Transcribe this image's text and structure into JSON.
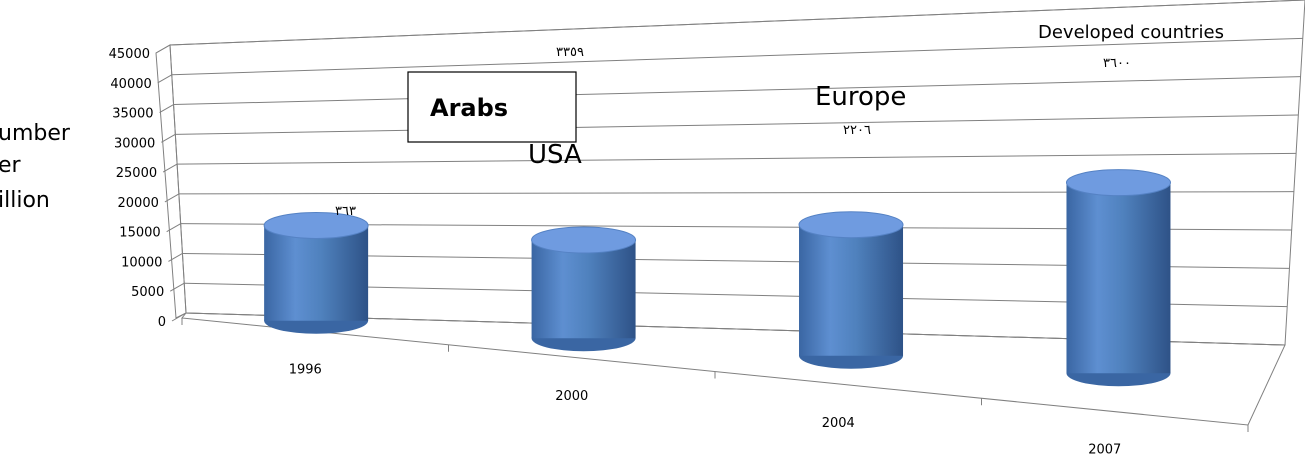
{
  "chart_data": {
    "type": "bar",
    "style": "3d-cylinder",
    "categories": [
      "1996",
      "2000",
      "2004",
      "2007"
    ],
    "values": [
      16000,
      16500,
      22000,
      32000
    ],
    "ylim": [
      0,
      45000
    ],
    "yticks": [
      "0",
      "5000",
      "10000",
      "15000",
      "20000",
      "25000",
      "30000",
      "35000",
      "40000",
      "45000"
    ],
    "ylabel_lines": [
      "umber",
      "er",
      "illion"
    ],
    "grid": true,
    "bar_color": "#4f81bd",
    "annotations": [
      {
        "text": "Arabs",
        "boxed": true
      },
      {
        "text": "USA"
      },
      {
        "text": "Europe"
      },
      {
        "text": "Developed countries"
      },
      {
        "text": "٣٦٣"
      },
      {
        "text": "٣٣٥٩"
      },
      {
        "text": "٢٢٠٦"
      },
      {
        "text": "٣٦٠٠"
      }
    ]
  }
}
